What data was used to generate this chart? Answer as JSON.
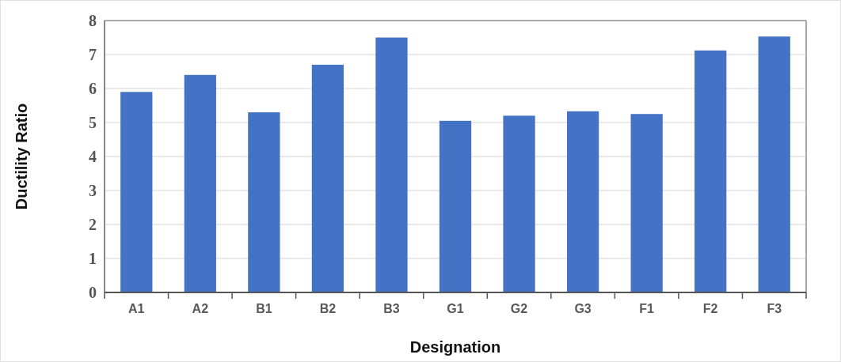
{
  "chart_data": {
    "type": "bar",
    "xlabel": "Designation",
    "ylabel": "Ductility Ratio",
    "categories": [
      "A1",
      "A2",
      "B1",
      "B2",
      "B3",
      "G1",
      "G2",
      "G3",
      "F1",
      "F2",
      "F3"
    ],
    "values": [
      5.9,
      6.4,
      5.3,
      6.7,
      7.5,
      5.05,
      5.2,
      5.33,
      5.25,
      7.12,
      7.53
    ],
    "color": "#4472c4",
    "ylim": [
      0,
      8
    ],
    "yticks": [
      0,
      1,
      2,
      3,
      4,
      5,
      6,
      7,
      8
    ],
    "grid": "y"
  }
}
